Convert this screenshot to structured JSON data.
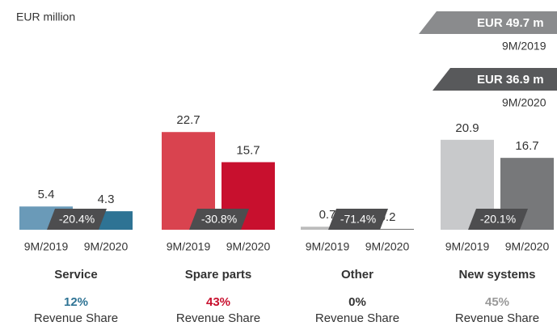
{
  "chart_data": {
    "type": "bar",
    "unit_label": "EUR million",
    "categories": [
      "Service",
      "Spare parts",
      "Other",
      "New systems"
    ],
    "series": [
      {
        "name": "9M/2019",
        "values": [
          5.4,
          22.7,
          0.7,
          20.9
        ],
        "colors": [
          "#6a9ab8",
          "#d9434f",
          "#bcbcbc",
          "#c8c9cb"
        ]
      },
      {
        "name": "9M/2020",
        "values": [
          4.3,
          15.7,
          0.2,
          16.7
        ],
        "colors": [
          "#2e7394",
          "#c8102e",
          "#777777",
          "#77787a"
        ]
      }
    ],
    "changes": [
      -20.4,
      -30.8,
      -71.4,
      -20.1
    ],
    "change_labels": [
      "-20.4%",
      "-30.8%",
      "-71.4%",
      "-20.1%"
    ],
    "shares": [
      12,
      43,
      0,
      45
    ],
    "share_labels": [
      "12%",
      "43%",
      "0%",
      "45%"
    ],
    "share_colors": [
      "#2e7394",
      "#c8102e",
      "#333333",
      "#999999"
    ],
    "share_caption": "Revenue Share",
    "totals": [
      {
        "label": "EUR 49.7 m",
        "period": "9M/2019",
        "color": "#8a8b8d"
      },
      {
        "label": "EUR 36.9 m",
        "period": "9M/2020",
        "color": "#58595b"
      }
    ],
    "ylim": [
      0,
      25
    ]
  }
}
